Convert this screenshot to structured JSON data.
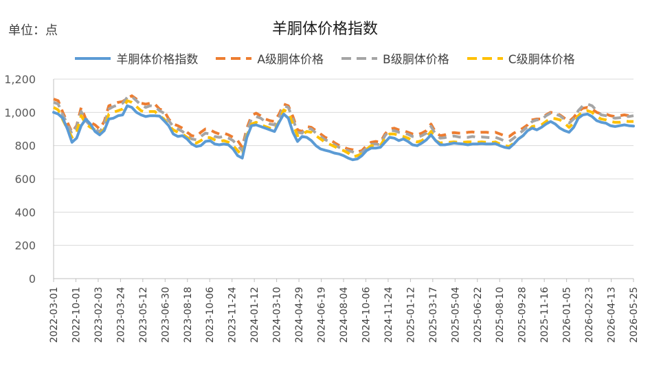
{
  "header": {
    "unit": "单位：点",
    "title": "羊胴体价格指数"
  },
  "chart_data": {
    "type": "line",
    "title": "羊胴体价格指数",
    "unit": "单位：点",
    "ylim": [
      0,
      1200
    ],
    "y_ticks": [
      "0",
      "200",
      "400",
      "600",
      "800",
      "1,000",
      "1,200"
    ],
    "x_tick_labels": [
      "2022-03-01",
      "2022-10-01",
      "2023-02-03",
      "2023-03-24",
      "2023-05-12",
      "2023-06-30",
      "2023-08-18",
      "2023-10-06",
      "2023-11-24",
      "2024-01-12",
      "2024-03-10",
      "2024-04-29",
      "2024-06-19",
      "2024-08-04",
      "2024-10-06",
      "2024-11-24",
      "2025-01-12",
      "2025-03-17",
      "2025-05-04",
      "2025-06-22",
      "2025-08-10",
      "2025-09-28",
      "2025-11-16",
      "2026-01-05",
      "2026-02-23",
      "2026-04-13",
      "2026-05-25"
    ],
    "legend": "top",
    "grid": "horizontal",
    "series": [
      {
        "name": "羊胴体价格指数",
        "color": "#5B9BD5",
        "dash": "solid",
        "values": [
          1000,
          990,
          965,
          900,
          820,
          845,
          920,
          960,
          930,
          885,
          865,
          890,
          960,
          965,
          980,
          985,
          1040,
          1030,
          1000,
          985,
          975,
          980,
          980,
          978,
          950,
          920,
          870,
          855,
          860,
          840,
          810,
          795,
          800,
          825,
          830,
          810,
          805,
          810,
          805,
          780,
          740,
          725,
          850,
          920,
          925,
          915,
          905,
          895,
          885,
          940,
          990,
          965,
          880,
          825,
          855,
          850,
          830,
          800,
          780,
          772,
          765,
          755,
          750,
          740,
          725,
          715,
          720,
          740,
          770,
          785,
          785,
          790,
          820,
          850,
          845,
          830,
          840,
          825,
          805,
          800,
          815,
          835,
          865,
          830,
          805,
          805,
          810,
          815,
          812,
          810,
          805,
          810,
          810,
          812,
          810,
          810,
          812,
          800,
          790,
          785,
          810,
          840,
          860,
          890,
          905,
          895,
          910,
          930,
          945,
          930,
          905,
          890,
          880,
          910,
          965,
          985,
          990,
          975,
          950,
          940,
          935,
          920,
          915,
          920,
          925,
          920,
          918
        ]
      },
      {
        "name": "A级胴体价格",
        "color": "#ED7D31",
        "dash": "dashed",
        "values": [
          1080,
          1070,
          1000,
          940,
          880,
          920,
          1030,
          960,
          940,
          925,
          900,
          945,
          1040,
          1050,
          1060,
          1065,
          1085,
          1100,
          1080,
          1055,
          1050,
          1055,
          1050,
          1020,
          1010,
          960,
          930,
          920,
          905,
          880,
          860,
          855,
          880,
          900,
          895,
          880,
          870,
          875,
          865,
          850,
          830,
          790,
          905,
          980,
          995,
          980,
          960,
          950,
          945,
          990,
          1050,
          1040,
          975,
          895,
          885,
          915,
          910,
          890,
          870,
          850,
          838,
          818,
          802,
          790,
          780,
          775,
          762,
          770,
          800,
          820,
          825,
          820,
          870,
          900,
          905,
          895,
          890,
          880,
          870,
          865,
          875,
          890,
          930,
          880,
          860,
          865,
          875,
          878,
          875,
          875,
          880,
          882,
          878,
          880,
          880,
          878,
          880,
          870,
          860,
          855,
          875,
          890,
          905,
          925,
          955,
          960,
          960,
          985,
          1000,
          995,
          985,
          965,
          945,
          970,
          1005,
          1025,
          1030,
          1020,
          1000,
          990,
          990,
          980,
          975,
          980,
          985,
          980,
          982
        ]
      },
      {
        "name": "B级胴体价格",
        "color": "#A5A5A5",
        "dash": "dashed",
        "values": [
          1060,
          1050,
          985,
          930,
          870,
          915,
          1005,
          950,
          920,
          905,
          880,
          930,
          1020,
          1035,
          1045,
          1055,
          1090,
          1095,
          1070,
          1045,
          1030,
          1040,
          1035,
          1010,
          995,
          950,
          915,
          900,
          885,
          860,
          840,
          835,
          855,
          875,
          870,
          855,
          850,
          855,
          845,
          830,
          800,
          770,
          890,
          960,
          975,
          965,
          945,
          930,
          925,
          970,
          1040,
          1030,
          960,
          880,
          875,
          905,
          900,
          875,
          855,
          835,
          825,
          805,
          790,
          780,
          770,
          762,
          752,
          760,
          785,
          808,
          810,
          805,
          860,
          890,
          890,
          880,
          875,
          868,
          855,
          850,
          860,
          875,
          915,
          868,
          845,
          848,
          855,
          858,
          852,
          850,
          850,
          855,
          850,
          852,
          850,
          848,
          850,
          840,
          828,
          825,
          845,
          870,
          890,
          915,
          945,
          955,
          955,
          980,
          995,
          990,
          980,
          958,
          935,
          960,
          1010,
          1040,
          1050,
          1040,
          1010,
          985,
          980,
          970,
          965,
          968,
          975,
          975,
          980
        ]
      },
      {
        "name": "C级胴体价格",
        "color": "#FFC000",
        "dash": "dashed",
        "values": [
          1030,
          1015,
          955,
          900,
          850,
          880,
          980,
          930,
          910,
          895,
          870,
          900,
          990,
          1000,
          1010,
          1020,
          1070,
          1060,
          1035,
          1010,
          1000,
          1005,
          1005,
          980,
          960,
          920,
          895,
          880,
          870,
          850,
          825,
          815,
          830,
          850,
          848,
          835,
          825,
          830,
          820,
          800,
          770,
          740,
          860,
          930,
          940,
          925,
          915,
          905,
          895,
          945,
          1015,
          1000,
          930,
          860,
          865,
          885,
          880,
          860,
          840,
          820,
          808,
          795,
          780,
          770,
          755,
          732,
          740,
          752,
          778,
          800,
          800,
          800,
          845,
          870,
          870,
          862,
          855,
          845,
          830,
          822,
          830,
          850,
          885,
          830,
          815,
          820,
          820,
          822,
          820,
          820,
          822,
          822,
          820,
          822,
          820,
          818,
          822,
          810,
          800,
          795,
          815,
          840,
          860,
          885,
          915,
          920,
          925,
          945,
          965,
          962,
          955,
          935,
          910,
          935,
          980,
          1005,
          1010,
          1000,
          975,
          960,
          955,
          945,
          940,
          940,
          948,
          945,
          945
        ]
      }
    ]
  }
}
